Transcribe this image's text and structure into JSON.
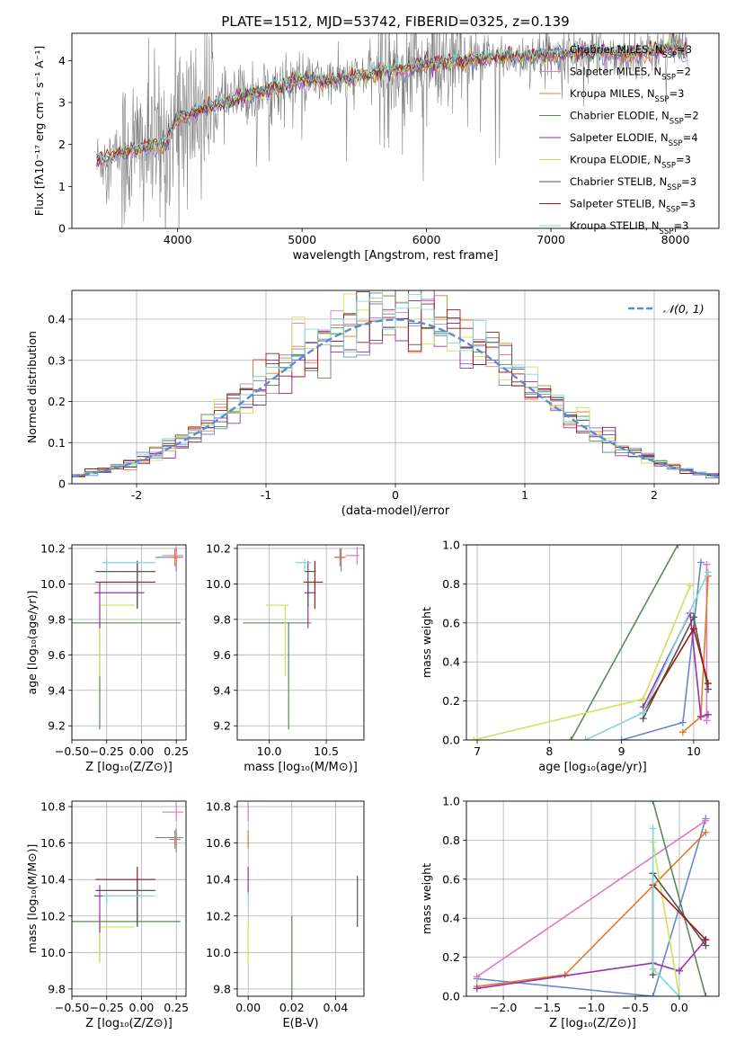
{
  "figure": {
    "title": "PLATE=1512, MJD=53742, FIBERID=0325, z=0.139"
  },
  "chart_data": [
    {
      "id": "spectrum",
      "type": "line",
      "title": "PLATE=1512, MJD=53742, FIBERID=0325, z=0.139",
      "xlabel": "wavelength [Angstrom, rest frame]",
      "ylabel": "Flux [fλ10⁻¹⁷ erg cm⁻² s⁻¹ A⁻¹]",
      "xlim": [
        3150,
        8350
      ],
      "ylim": [
        0,
        4.65
      ],
      "xticks": [
        4000,
        5000,
        6000,
        7000,
        8000
      ],
      "yticks": [
        0,
        1,
        2,
        3,
        4
      ],
      "grid": false,
      "legend_position": "top-right",
      "data_color": "#808080",
      "continuum_points": [
        [
          3350,
          1.6
        ],
        [
          3500,
          1.75
        ],
        [
          3700,
          1.9
        ],
        [
          3900,
          2.0
        ],
        [
          4000,
          2.6
        ],
        [
          4200,
          2.85
        ],
        [
          4400,
          3.0
        ],
        [
          4600,
          3.2
        ],
        [
          4800,
          3.35
        ],
        [
          5000,
          3.55
        ],
        [
          5200,
          3.5
        ],
        [
          5400,
          3.6
        ],
        [
          5600,
          3.7
        ],
        [
          5800,
          3.8
        ],
        [
          6000,
          3.9
        ],
        [
          6200,
          3.95
        ],
        [
          6400,
          4.05
        ],
        [
          6600,
          4.1
        ],
        [
          6800,
          4.1
        ],
        [
          7000,
          4.15
        ],
        [
          7200,
          4.2
        ],
        [
          7400,
          4.2
        ],
        [
          7600,
          4.15
        ],
        [
          7800,
          4.2
        ],
        [
          8000,
          4.35
        ],
        [
          8100,
          4.15
        ]
      ],
      "series": [
        {
          "name": "Chabrier MILES, N_SSP=3",
          "color": "#6688cc"
        },
        {
          "name": "Salpeter MILES, N_SSP=2",
          "color": "#e377c2"
        },
        {
          "name": "Kroupa MILES, N_SSP=3",
          "color": "#e07b28"
        },
        {
          "name": "Chabrier ELODIE, N_SSP=2",
          "color": "#5a8a5a"
        },
        {
          "name": "Salpeter ELODIE, N_SSP=4",
          "color": "#9b30b0"
        },
        {
          "name": "Kroupa ELODIE, N_SSP=3",
          "color": "#d4e157"
        },
        {
          "name": "Chabrier STELIB, N_SSP=3",
          "color": "#555555"
        },
        {
          "name": "Salpeter STELIB, N_SSP=3",
          "color": "#a01818"
        },
        {
          "name": "Kroupa STELIB, N_SSP=3",
          "color": "#7fd8d8"
        }
      ]
    },
    {
      "id": "residuals",
      "type": "histogram",
      "xlabel": "(data-model)/error",
      "ylabel": "Normed distribution",
      "xlim": [
        -2.5,
        2.5
      ],
      "ylim": [
        0,
        0.47
      ],
      "xticks": [
        -2,
        -1,
        0,
        1,
        2
      ],
      "yticks": [
        0,
        0.1,
        0.2,
        0.3,
        0.4
      ],
      "grid": true,
      "legend_position": "top-right",
      "reference_curve": {
        "name": "𝒩(0, 1)",
        "color": "#5b8bd6",
        "style": "dashed"
      }
    },
    {
      "id": "age_vs_Z",
      "type": "errorbar",
      "xlabel": "Z [log₁₀(Z/Z⊙)]",
      "ylabel": "age  [log₁₀(age/yr)]",
      "xlim": [
        -0.5,
        0.32
      ],
      "ylim": [
        9.12,
        10.22
      ],
      "xticks": [
        -0.5,
        -0.25,
        0.0,
        0.25
      ],
      "xticklabels": [
        "−0.50",
        "−0.25",
        "0.00",
        "0.25"
      ],
      "yticks": [
        9.2,
        9.4,
        9.6,
        9.8,
        10.0,
        10.2
      ],
      "yticklabels": [
        "9.2",
        "9.4",
        "9.6",
        "9.8",
        "10.0",
        "10.2"
      ],
      "grid": true
    },
    {
      "id": "age_vs_mass",
      "type": "errorbar",
      "xlabel": "mass [log₁₀(M/M⊙)]",
      "ylabel": "",
      "xlim": [
        9.72,
        10.83
      ],
      "ylim": [
        9.12,
        10.22
      ],
      "xticks": [
        10.0,
        10.5
      ],
      "xticklabels": [
        "10.0",
        "10.5"
      ],
      "yticks": [
        9.2,
        9.4,
        9.6,
        9.8,
        10.0,
        10.2
      ],
      "yticklabels": [
        "9.2",
        "9.4",
        "9.6",
        "9.8",
        "10.0",
        "10.2"
      ],
      "grid": true
    },
    {
      "id": "weight_vs_age",
      "type": "line",
      "xlabel": "age  [log₁₀(age/yr)]",
      "ylabel": "mass weight",
      "xlim": [
        6.85,
        10.35
      ],
      "ylim": [
        0,
        1
      ],
      "xticks": [
        7,
        8,
        9,
        10
      ],
      "xticklabels": [
        "7",
        "8",
        "9",
        "10"
      ],
      "yticks": [
        0,
        0.2,
        0.4,
        0.6,
        0.8,
        1.0
      ],
      "yticklabels": [
        "0.0",
        "0.2",
        "0.4",
        "0.6",
        "0.8",
        "1.0"
      ],
      "grid": true,
      "series": [
        {
          "name": "Chabrier MILES",
          "color": "#6688cc",
          "x": [
            9.0,
            9.85,
            10.1
          ],
          "y": [
            0.0,
            0.09,
            0.91
          ]
        },
        {
          "name": "Salpeter MILES",
          "color": "#e377c2",
          "x": [
            10.18,
            10.18
          ],
          "y": [
            0.1,
            0.9
          ]
        },
        {
          "name": "Kroupa MILES",
          "color": "#e07b28",
          "x": [
            9.85,
            10.1,
            10.2
          ],
          "y": [
            0.04,
            0.12,
            0.84
          ]
        },
        {
          "name": "Chabrier ELODIE",
          "color": "#5a8a5a",
          "x": [
            8.3,
            9.78
          ],
          "y": [
            0.0,
            1.0
          ]
        },
        {
          "name": "Salpeter ELODIE",
          "color": "#9b30b0",
          "x": [
            9.3,
            9.95,
            10.1,
            10.2
          ],
          "y": [
            0.17,
            0.65,
            0.12,
            0.13
          ]
        },
        {
          "name": "Kroupa ELODIE",
          "color": "#d4e157",
          "x": [
            6.95,
            9.3,
            9.95
          ],
          "y": [
            0.0,
            0.21,
            0.79
          ]
        },
        {
          "name": "Chabrier STELIB",
          "color": "#555555",
          "x": [
            9.3,
            10.0,
            10.2
          ],
          "y": [
            0.11,
            0.63,
            0.26
          ]
        },
        {
          "name": "Salpeter STELIB",
          "color": "#a01818",
          "x": [
            9.3,
            10.0,
            10.2
          ],
          "y": [
            0.14,
            0.57,
            0.29
          ]
        },
        {
          "name": "Kroupa STELIB",
          "color": "#7fd8d8",
          "x": [
            8.5,
            9.3,
            10.2
          ],
          "y": [
            0.0,
            0.14,
            0.86
          ]
        }
      ]
    },
    {
      "id": "mass_vs_Z",
      "type": "errorbar",
      "xlabel": "Z [log₁₀(Z/Z⊙)]",
      "ylabel": "mass [log₁₀(M/M⊙)]",
      "xlim": [
        -0.5,
        0.32
      ],
      "ylim": [
        9.76,
        10.83
      ],
      "xticks": [
        -0.5,
        -0.25,
        0.0,
        0.25
      ],
      "xticklabels": [
        "−0.50",
        "−0.25",
        "0.00",
        "0.25"
      ],
      "yticks": [
        9.8,
        10.0,
        10.2,
        10.4,
        10.6,
        10.8
      ],
      "yticklabels": [
        "9.8",
        "10.0",
        "10.2",
        "10.4",
        "10.6",
        "10.8"
      ],
      "grid": true
    },
    {
      "id": "mass_vs_EBV",
      "type": "errorbar",
      "xlabel": "E(B-V)",
      "ylabel": "",
      "xlim": [
        -0.005,
        0.053
      ],
      "ylim": [
        9.76,
        10.83
      ],
      "xticks": [
        0.0,
        0.02,
        0.04
      ],
      "xticklabels": [
        "0.00",
        "0.02",
        "0.04"
      ],
      "yticks": [
        9.8,
        10.0,
        10.2,
        10.4,
        10.6,
        10.8
      ],
      "yticklabels": [
        "9.8",
        "10.0",
        "10.2",
        "10.4",
        "10.6",
        "10.8"
      ],
      "grid": true
    },
    {
      "id": "weight_vs_Z",
      "type": "line",
      "xlabel": "Z [log₁₀(Z/Z⊙)]",
      "ylabel": "mass weight",
      "xlim": [
        -2.42,
        0.45
      ],
      "ylim": [
        0,
        1
      ],
      "xticks": [
        -2.0,
        -1.5,
        -1.0,
        -0.5,
        0.0
      ],
      "xticklabels": [
        "−2.0",
        "−1.5",
        "−1.0",
        "−0.5",
        "0.0"
      ],
      "yticks": [
        0,
        0.2,
        0.4,
        0.6,
        0.8,
        1.0
      ],
      "yticklabels": [
        "0.0",
        "0.2",
        "0.4",
        "0.6",
        "0.8",
        "1.0"
      ],
      "grid": true,
      "series": [
        {
          "name": "Chabrier MILES",
          "color": "#6688cc",
          "x": [
            -2.3,
            -0.3,
            0.3
          ],
          "y": [
            0.09,
            0.0,
            0.91
          ]
        },
        {
          "name": "Salpeter MILES",
          "color": "#e377c2",
          "x": [
            -2.3,
            0.3
          ],
          "y": [
            0.1,
            0.9
          ]
        },
        {
          "name": "Kroupa MILES",
          "color": "#e07b28",
          "x": [
            -2.3,
            -1.3,
            0.3
          ],
          "y": [
            0.05,
            0.11,
            0.84
          ]
        },
        {
          "name": "Chabrier ELODIE",
          "color": "#5a8a5a",
          "x": [
            -0.3,
            0.3
          ],
          "y": [
            1.0,
            0.0
          ]
        },
        {
          "name": "Salpeter ELODIE",
          "color": "#9b30b0",
          "x": [
            -2.3,
            -0.3,
            0.0,
            0.3
          ],
          "y": [
            0.04,
            0.17,
            0.13,
            0.29
          ]
        },
        {
          "name": "Kroupa ELODIE",
          "color": "#d4e157",
          "x": [
            -0.3,
            0.0
          ],
          "y": [
            0.79,
            0.0
          ]
        },
        {
          "name": "Chabrier STELIB",
          "color": "#555555",
          "x": [
            -0.3,
            -0.3,
            0.3
          ],
          "y": [
            0.11,
            0.63,
            0.26
          ]
        },
        {
          "name": "Salpeter STELIB",
          "color": "#a01818",
          "x": [
            -0.3,
            -0.3,
            0.3
          ],
          "y": [
            0.14,
            0.57,
            0.29
          ]
        },
        {
          "name": "Kroupa STELIB",
          "color": "#7fd8d8",
          "x": [
            -0.3,
            -0.3,
            0.0
          ],
          "y": [
            0.86,
            0.14,
            0.0
          ]
        }
      ]
    }
  ]
}
